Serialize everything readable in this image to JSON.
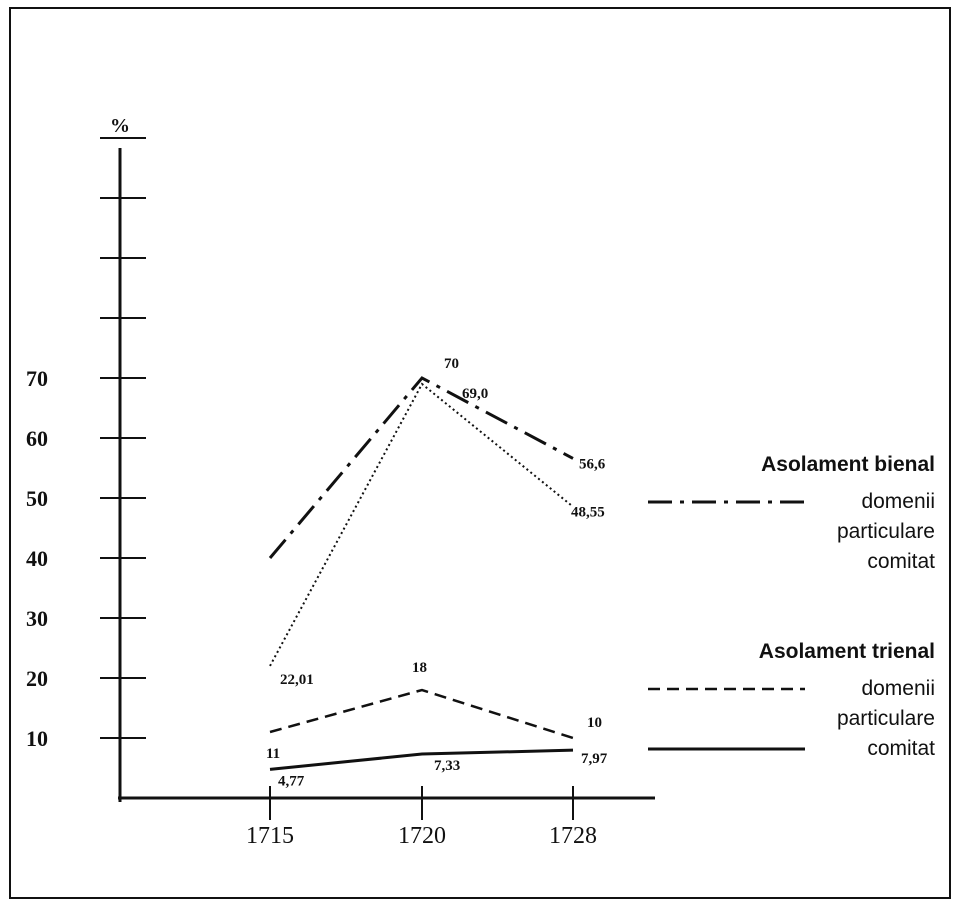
{
  "chart_data": {
    "type": "line",
    "title": "",
    "ylabel": "%",
    "xlabel": "",
    "x": [
      "1715",
      "1720",
      "1728"
    ],
    "ylim": [
      0,
      110
    ],
    "yticks": [
      10,
      20,
      30,
      40,
      50,
      60,
      70,
      80,
      90,
      100,
      110
    ],
    "ytick_labels": [
      "10",
      "20",
      "30",
      "40",
      "50",
      "60",
      "70",
      "",
      "",
      "",
      ""
    ],
    "grid": false,
    "legend": {
      "placement": "right",
      "groups": [
        {
          "title": "Asolament bienal",
          "items": [
            "domenii",
            "particulare",
            "comitat"
          ]
        },
        {
          "title": "Asolament trienal",
          "items": [
            "domenii",
            "particulare",
            "comitat"
          ]
        }
      ]
    },
    "series": [
      {
        "values": [
          40,
          70,
          56.6
        ],
        "labels": [
          "",
          "70",
          "56,6"
        ],
        "style": "dashdot",
        "legend_group": 0
      },
      {
        "values": [
          22.01,
          69.0,
          48.55
        ],
        "labels": [
          "22,01",
          "69,0",
          "48,55"
        ],
        "style": "dotted",
        "legend_group": 0
      },
      {
        "values": [
          11,
          18,
          10
        ],
        "labels": [
          "11",
          "18",
          "10"
        ],
        "style": "dashed",
        "legend_group": 1
      },
      {
        "values": [
          4.77,
          7.33,
          7.97
        ],
        "labels": [
          "4,77",
          "7,33",
          "7,97"
        ],
        "style": "solid",
        "legend_group": 1
      }
    ]
  }
}
